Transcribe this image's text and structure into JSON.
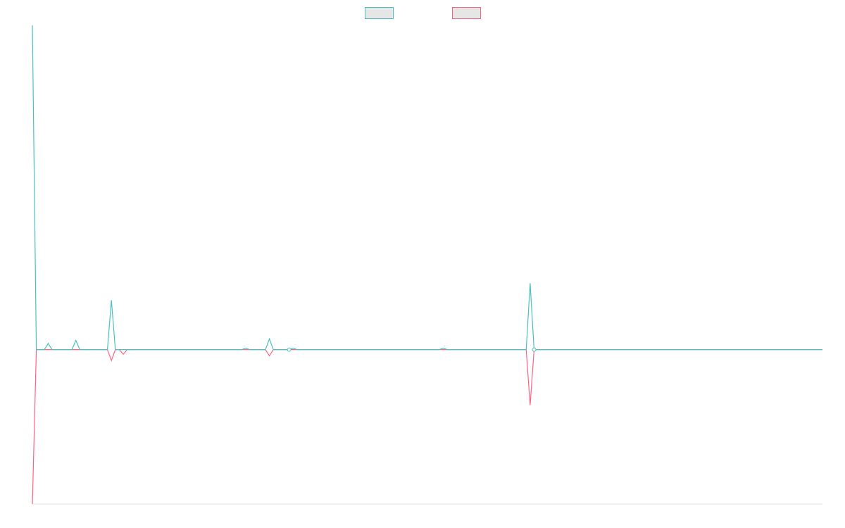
{
  "chart_data": {
    "type": "line",
    "title": "",
    "xlabel": "",
    "ylabel": "",
    "grid": false,
    "legend_position": "top-center",
    "x": [
      0,
      1,
      2,
      3,
      4,
      5,
      6,
      7,
      8,
      9,
      10,
      11,
      12,
      13,
      14,
      15,
      16,
      17,
      18,
      19,
      20,
      21,
      22,
      23,
      24,
      25,
      26,
      27,
      28,
      29,
      30,
      31,
      32,
      33,
      34,
      35,
      36,
      37,
      38,
      39,
      40,
      41,
      42,
      43,
      44,
      45,
      46,
      47,
      48,
      49,
      50,
      51,
      52,
      53,
      54,
      55,
      56,
      57,
      58,
      59,
      60,
      61,
      62,
      63,
      64,
      65,
      66,
      67,
      68,
      69,
      70,
      71,
      72,
      73,
      74,
      75,
      76,
      77,
      78,
      79,
      80,
      81,
      82,
      83,
      84,
      85,
      86,
      87,
      88,
      89,
      90,
      91,
      92,
      93,
      94,
      95,
      96,
      97,
      98,
      99,
      100,
      101,
      102,
      103,
      104,
      105,
      106,
      107,
      108,
      109,
      110,
      111,
      112,
      113,
      114,
      115,
      116,
      117,
      118,
      119,
      120,
      121,
      122,
      123,
      124,
      125,
      126,
      127,
      128,
      129,
      130,
      131,
      132,
      133,
      134,
      135,
      136,
      137,
      138,
      139,
      140,
      141,
      142,
      143,
      144,
      145,
      146,
      147,
      148,
      149,
      150,
      151,
      152,
      153,
      154,
      155,
      156,
      157,
      158,
      159,
      160,
      161,
      162,
      163,
      164,
      165,
      166,
      167,
      168,
      169,
      170,
      171,
      172,
      173,
      174,
      175,
      176,
      177,
      178,
      179,
      180,
      181,
      182,
      183,
      184,
      185,
      186,
      187,
      188,
      189,
      190,
      191,
      192,
      193,
      194,
      195,
      196,
      197,
      198,
      199,
      200
    ],
    "ylim": [
      -100,
      210
    ],
    "series": [
      {
        "name": "",
        "color": "#4bc0c0",
        "fill": "#e6e6e6",
        "values": [
          210,
          0,
          0,
          0,
          4,
          0,
          0,
          0,
          0,
          0,
          0,
          6,
          0,
          0,
          0,
          0,
          0,
          0,
          0,
          0,
          32,
          0,
          0,
          0,
          0,
          0,
          0,
          0,
          0,
          0,
          0,
          0,
          0,
          0,
          0,
          0,
          0,
          0,
          0,
          0,
          0,
          0,
          0,
          0,
          0,
          0,
          0,
          0,
          0,
          0,
          0,
          0,
          0,
          0,
          1,
          0,
          0,
          0,
          0,
          0,
          7,
          0,
          0,
          0,
          0,
          0,
          1,
          0,
          0,
          0,
          0,
          0,
          0,
          0,
          0,
          0,
          0,
          0,
          0,
          0,
          0,
          0,
          0,
          0,
          0,
          0,
          0,
          0,
          0,
          0,
          0,
          0,
          0,
          0,
          0,
          0,
          0,
          0,
          0,
          0,
          0,
          0,
          0,
          0,
          1,
          0,
          0,
          0,
          0,
          0,
          0,
          0,
          0,
          0,
          0,
          0,
          0,
          0,
          0,
          0,
          0,
          0,
          0,
          0,
          0,
          0,
          43,
          0,
          0,
          0,
          0,
          0,
          0,
          0,
          0,
          0,
          0,
          0,
          0,
          0,
          0,
          0,
          0,
          0,
          0,
          0,
          0,
          0,
          0,
          0,
          0,
          0,
          0,
          0,
          0,
          0,
          0,
          0,
          0,
          0,
          0,
          0,
          0,
          0,
          0,
          0,
          0,
          0,
          0,
          0,
          0,
          0,
          0,
          0,
          0,
          0,
          0,
          0,
          0,
          0,
          0,
          0,
          0,
          0,
          0,
          0,
          0,
          0,
          0,
          0,
          0,
          0,
          0,
          0,
          0,
          0,
          0,
          0,
          0,
          0,
          0
        ]
      },
      {
        "name": "",
        "color": "#ff6384",
        "fill": "#e6e6e6",
        "values": [
          -100,
          0,
          0,
          0,
          0,
          0,
          0,
          0,
          0,
          0,
          0,
          0,
          0,
          0,
          0,
          0,
          0,
          0,
          0,
          0,
          -7,
          0,
          0,
          -3,
          0,
          0,
          0,
          0,
          0,
          0,
          0,
          0,
          0,
          0,
          0,
          0,
          0,
          0,
          0,
          0,
          0,
          0,
          0,
          0,
          0,
          0,
          0,
          0,
          0,
          0,
          0,
          0,
          0,
          0,
          0,
          0,
          0,
          0,
          0,
          0,
          -4,
          0,
          0,
          0,
          0,
          0,
          0,
          0,
          0,
          0,
          0,
          0,
          0,
          0,
          0,
          0,
          0,
          0,
          0,
          0,
          0,
          0,
          0,
          0,
          0,
          0,
          0,
          0,
          0,
          0,
          0,
          0,
          0,
          0,
          0,
          0,
          0,
          0,
          0,
          0,
          0,
          0,
          0,
          0,
          0,
          0,
          0,
          0,
          0,
          0,
          0,
          0,
          0,
          0,
          0,
          0,
          0,
          0,
          0,
          0,
          0,
          0,
          0,
          0,
          0,
          0,
          -36,
          0,
          0,
          0,
          0,
          0,
          0,
          0,
          0,
          0,
          0,
          0,
          0,
          0,
          0,
          0,
          0,
          0,
          0,
          0,
          0,
          0,
          0,
          0,
          0,
          0,
          0,
          0,
          0,
          0,
          0,
          0,
          0,
          0,
          0,
          0,
          0,
          0,
          0,
          0,
          0,
          0,
          0,
          0,
          0,
          0,
          0,
          0,
          0,
          0,
          0,
          0,
          0,
          0,
          0,
          0,
          0,
          0,
          0,
          0,
          0,
          0,
          0,
          0,
          0,
          0,
          0,
          0,
          0,
          0,
          0,
          0,
          0,
          0,
          0
        ]
      }
    ],
    "markers": [
      {
        "x": 65,
        "y": 0
      },
      {
        "x": 127,
        "y": 0
      }
    ]
  }
}
